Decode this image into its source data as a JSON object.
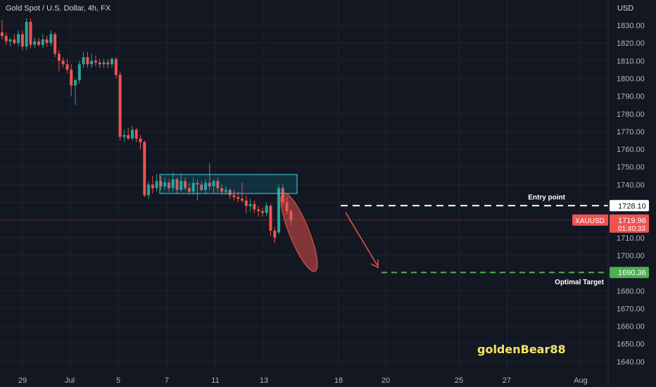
{
  "header": {
    "symbol_title": "Gold Spot / U.S. Dollar, 4h, FX",
    "currency": "USD"
  },
  "chart_data": {
    "type": "candlestick",
    "title": "Gold Spot / U.S. Dollar, 4h, FX",
    "ylim": [
      1636,
      1841
    ],
    "y_ticks": [
      "1830.00",
      "1820.00",
      "1810.00",
      "1800.00",
      "1790.00",
      "1780.00",
      "1770.00",
      "1760.00",
      "1750.00",
      "1740.00",
      "1730.00",
      "1720.00",
      "1710.00",
      "1700.00",
      "1690.00",
      "1680.00",
      "1670.00",
      "1660.00",
      "1650.00",
      "1640.00"
    ],
    "x_ticks": [
      "29",
      "Jul",
      "5",
      "7",
      "11",
      "13",
      "18",
      "20",
      "25",
      "27",
      "Aug"
    ],
    "grid": true,
    "colors": {
      "up": "#26a69a",
      "down": "#ef5350",
      "background": "#131722"
    },
    "candles": [
      {
        "o": 1826,
        "h": 1833,
        "l": 1822,
        "c": 1824
      },
      {
        "o": 1824,
        "h": 1826,
        "l": 1819,
        "c": 1821
      },
      {
        "o": 1821,
        "h": 1823,
        "l": 1818,
        "c": 1822
      },
      {
        "o": 1822,
        "h": 1825,
        "l": 1819,
        "c": 1820
      },
      {
        "o": 1820,
        "h": 1827,
        "l": 1818,
        "c": 1825
      },
      {
        "o": 1825,
        "h": 1827,
        "l": 1816,
        "c": 1818
      },
      {
        "o": 1818,
        "h": 1834,
        "l": 1816,
        "c": 1832
      },
      {
        "o": 1832,
        "h": 1834,
        "l": 1817,
        "c": 1819
      },
      {
        "o": 1819,
        "h": 1823,
        "l": 1817,
        "c": 1821
      },
      {
        "o": 1821,
        "h": 1823,
        "l": 1818,
        "c": 1819
      },
      {
        "o": 1819,
        "h": 1825,
        "l": 1817,
        "c": 1822
      },
      {
        "o": 1822,
        "h": 1824,
        "l": 1818,
        "c": 1820
      },
      {
        "o": 1820,
        "h": 1827,
        "l": 1818,
        "c": 1825
      },
      {
        "o": 1825,
        "h": 1826,
        "l": 1812,
        "c": 1814
      },
      {
        "o": 1814,
        "h": 1816,
        "l": 1804,
        "c": 1810
      },
      {
        "o": 1810,
        "h": 1812,
        "l": 1806,
        "c": 1808
      },
      {
        "o": 1808,
        "h": 1811,
        "l": 1803,
        "c": 1805
      },
      {
        "o": 1805,
        "h": 1808,
        "l": 1790,
        "c": 1796
      },
      {
        "o": 1796,
        "h": 1800,
        "l": 1785,
        "c": 1799
      },
      {
        "o": 1799,
        "h": 1810,
        "l": 1797,
        "c": 1808
      },
      {
        "o": 1808,
        "h": 1815,
        "l": 1806,
        "c": 1812
      },
      {
        "o": 1812,
        "h": 1815,
        "l": 1806,
        "c": 1808
      },
      {
        "o": 1808,
        "h": 1814,
        "l": 1806,
        "c": 1810
      },
      {
        "o": 1810,
        "h": 1813,
        "l": 1807,
        "c": 1809
      },
      {
        "o": 1809,
        "h": 1811,
        "l": 1806,
        "c": 1808
      },
      {
        "o": 1808,
        "h": 1811,
        "l": 1806,
        "c": 1809
      },
      {
        "o": 1809,
        "h": 1811,
        "l": 1806,
        "c": 1808
      },
      {
        "o": 1808,
        "h": 1812,
        "l": 1806,
        "c": 1811
      },
      {
        "o": 1811,
        "h": 1812,
        "l": 1800,
        "c": 1802
      },
      {
        "o": 1802,
        "h": 1804,
        "l": 1765,
        "c": 1767
      },
      {
        "o": 1767,
        "h": 1771,
        "l": 1764,
        "c": 1768
      },
      {
        "o": 1768,
        "h": 1772,
        "l": 1765,
        "c": 1766
      },
      {
        "o": 1766,
        "h": 1773,
        "l": 1765,
        "c": 1771
      },
      {
        "o": 1771,
        "h": 1772,
        "l": 1764,
        "c": 1766
      },
      {
        "o": 1766,
        "h": 1768,
        "l": 1760,
        "c": 1764
      },
      {
        "o": 1764,
        "h": 1765,
        "l": 1733,
        "c": 1734
      },
      {
        "o": 1734,
        "h": 1742,
        "l": 1732,
        "c": 1740
      },
      {
        "o": 1740,
        "h": 1745,
        "l": 1735,
        "c": 1738
      },
      {
        "o": 1738,
        "h": 1746,
        "l": 1736,
        "c": 1742
      },
      {
        "o": 1742,
        "h": 1745,
        "l": 1737,
        "c": 1739
      },
      {
        "o": 1739,
        "h": 1744,
        "l": 1737,
        "c": 1741
      },
      {
        "o": 1741,
        "h": 1743,
        "l": 1736,
        "c": 1738
      },
      {
        "o": 1738,
        "h": 1747,
        "l": 1736,
        "c": 1743
      },
      {
        "o": 1743,
        "h": 1744,
        "l": 1735,
        "c": 1737
      },
      {
        "o": 1737,
        "h": 1746,
        "l": 1736,
        "c": 1742
      },
      {
        "o": 1742,
        "h": 1744,
        "l": 1737,
        "c": 1738
      },
      {
        "o": 1738,
        "h": 1741,
        "l": 1734,
        "c": 1736
      },
      {
        "o": 1736,
        "h": 1744,
        "l": 1734,
        "c": 1741
      },
      {
        "o": 1741,
        "h": 1743,
        "l": 1731,
        "c": 1740
      },
      {
        "o": 1740,
        "h": 1742,
        "l": 1736,
        "c": 1737
      },
      {
        "o": 1737,
        "h": 1743,
        "l": 1735,
        "c": 1741
      },
      {
        "o": 1741,
        "h": 1752,
        "l": 1737,
        "c": 1739
      },
      {
        "o": 1739,
        "h": 1743,
        "l": 1735,
        "c": 1742
      },
      {
        "o": 1742,
        "h": 1744,
        "l": 1736,
        "c": 1738
      },
      {
        "o": 1738,
        "h": 1740,
        "l": 1734,
        "c": 1736
      },
      {
        "o": 1736,
        "h": 1739,
        "l": 1734,
        "c": 1737
      },
      {
        "o": 1737,
        "h": 1738,
        "l": 1732,
        "c": 1734
      },
      {
        "o": 1734,
        "h": 1737,
        "l": 1731,
        "c": 1733
      },
      {
        "o": 1733,
        "h": 1736,
        "l": 1730,
        "c": 1732
      },
      {
        "o": 1732,
        "h": 1741,
        "l": 1730,
        "c": 1731
      },
      {
        "o": 1731,
        "h": 1734,
        "l": 1724,
        "c": 1728
      },
      {
        "o": 1728,
        "h": 1732,
        "l": 1725,
        "c": 1729
      },
      {
        "o": 1729,
        "h": 1731,
        "l": 1724,
        "c": 1726
      },
      {
        "o": 1726,
        "h": 1728,
        "l": 1722,
        "c": 1725
      },
      {
        "o": 1725,
        "h": 1727,
        "l": 1722,
        "c": 1724
      },
      {
        "o": 1724,
        "h": 1730,
        "l": 1722,
        "c": 1728
      },
      {
        "o": 1728,
        "h": 1729,
        "l": 1711,
        "c": 1714
      },
      {
        "o": 1714,
        "h": 1716,
        "l": 1707,
        "c": 1710
      },
      {
        "o": 1713,
        "h": 1740,
        "l": 1712,
        "c": 1738
      },
      {
        "o": 1738,
        "h": 1740,
        "l": 1728,
        "c": 1730
      },
      {
        "o": 1730,
        "h": 1733,
        "l": 1723,
        "c": 1725
      },
      {
        "o": 1725,
        "h": 1726,
        "l": 1717,
        "c": 1720
      }
    ],
    "levels": [
      {
        "name": "Entry point",
        "value": 1728.1,
        "label": "1728.10",
        "color": "#ffffff"
      },
      {
        "name": "Optimal Target",
        "value": 1690.36,
        "label": "1690.36",
        "color": "#4caf50"
      }
    ],
    "last_price": {
      "symbol": "XAUUSD",
      "value": 1719.96,
      "label": "1719.96",
      "countdown": "01:40:33",
      "color": "#ef5350"
    }
  },
  "annotations": {
    "entry_label": "Entry point",
    "target_label": "Optimal Target",
    "watermark": "goldenBear88"
  }
}
